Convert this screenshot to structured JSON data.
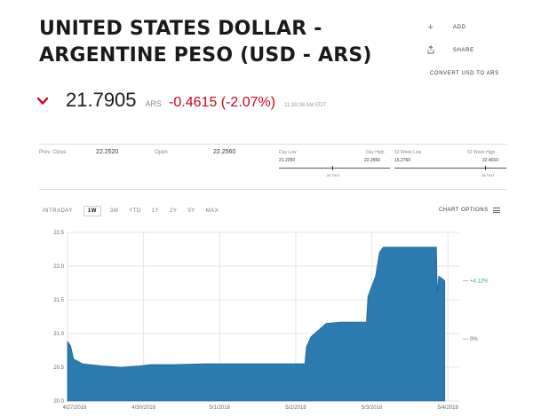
{
  "header": {
    "title_line1": "UNITED STATES DOLLAR -",
    "title_line2": "ARGENTINE PESO (USD - ARS)"
  },
  "actions": {
    "add": "ADD",
    "share": "SHARE",
    "convert": "CONVERT USD TO ARS"
  },
  "quote": {
    "price": "21.7905",
    "currency": "ARS",
    "change": "-0.4615 (-2.07%)",
    "time": "11:39:36 AM EDT",
    "direction_icon": "chevron-down-icon",
    "change_color": "#d0021b"
  },
  "stats": {
    "prev_close_label": "Prev. Close",
    "prev_close_value": "22.2520",
    "open_label": "Open",
    "open_value": "22.2560",
    "day_low_label": "Day Low",
    "day_low_value": "21.2250",
    "day_high_label": "Day High",
    "day_high_value": "22.2650",
    "day_marker": "21.7417",
    "week52_low_label": "52 Week Low",
    "week52_low_value": "15.2760",
    "week52_high_label": "52 Week High",
    "week52_high_value": "22.4010",
    "week52_marker": "15.7417"
  },
  "periods": [
    "INTRADAY",
    "1W",
    "3M",
    "YTD",
    "1Y",
    "2Y",
    "5Y",
    "MAX"
  ],
  "active_period": "1W",
  "chart_options_label": "CHART OPTIONS",
  "chart_data": {
    "type": "area",
    "color": "#2b7bb1",
    "ylim": [
      20.0,
      22.5
    ],
    "yticks": [
      "20.0",
      "20.5",
      "21.0",
      "21.5",
      "22.0",
      "22.5"
    ],
    "xticks": [
      "4/27/2018",
      "4/30/2018",
      "5/1/2018",
      "5/2/2018",
      "5/3/2018",
      "5/4/2018"
    ],
    "xlim": [
      0,
      5.15
    ],
    "grid": true,
    "right_labels": [
      {
        "text": "+4.12%",
        "y": 21.78
      },
      {
        "text": "0%",
        "y": 20.92
      }
    ],
    "points": [
      [
        0.0,
        20.88
      ],
      [
        0.04,
        20.82
      ],
      [
        0.08,
        20.62
      ],
      [
        0.2,
        20.55
      ],
      [
        0.45,
        20.52
      ],
      [
        0.7,
        20.5
      ],
      [
        0.95,
        20.52
      ],
      [
        1.1,
        20.54
      ],
      [
        1.4,
        20.54
      ],
      [
        1.8,
        20.55
      ],
      [
        2.2,
        20.55
      ],
      [
        2.6,
        20.55
      ],
      [
        3.0,
        20.55
      ],
      [
        3.12,
        20.55
      ],
      [
        3.14,
        20.8
      ],
      [
        3.2,
        20.95
      ],
      [
        3.3,
        21.05
      ],
      [
        3.4,
        21.15
      ],
      [
        3.6,
        21.17
      ],
      [
        3.8,
        21.17
      ],
      [
        3.93,
        21.17
      ],
      [
        3.95,
        21.55
      ],
      [
        4.0,
        21.7
      ],
      [
        4.05,
        21.85
      ],
      [
        4.1,
        22.2
      ],
      [
        4.15,
        22.28
      ],
      [
        4.3,
        22.28
      ],
      [
        4.5,
        22.28
      ],
      [
        4.7,
        22.28
      ],
      [
        4.85,
        22.28
      ],
      [
        4.86,
        21.6
      ],
      [
        4.88,
        21.85
      ],
      [
        4.92,
        21.82
      ],
      [
        4.96,
        21.78
      ]
    ]
  }
}
